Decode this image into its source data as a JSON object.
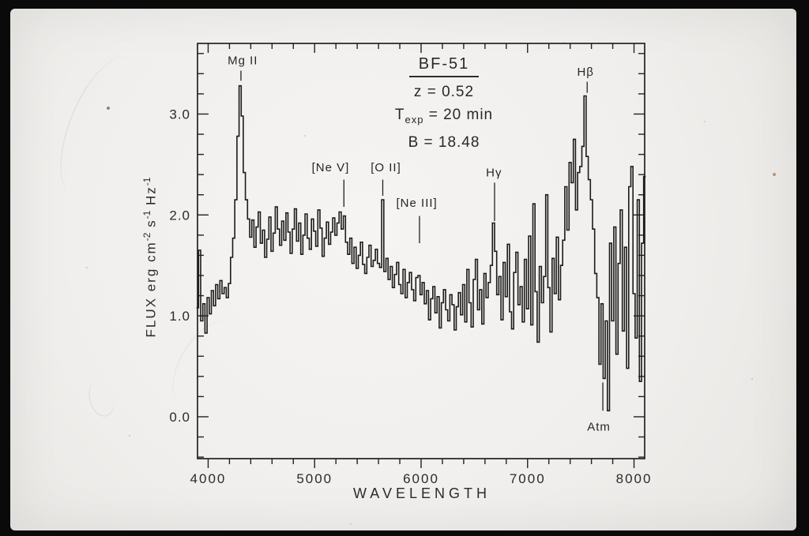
{
  "photo": {
    "border_color": "#0a0a0a",
    "slide_color": "#f1efed",
    "ink_color": "#222222"
  },
  "chart_data": {
    "type": "line",
    "subtype": "spectrum-histogram",
    "title_block": {
      "object": "BF-51",
      "redshift": "z = 0.52",
      "texp_prefix": "T",
      "texp_sub": "exp",
      "texp_value": " = 20 min",
      "b_mag": "B = 18.48"
    },
    "xlabel": "WAVELENGTH",
    "ylabel_parts": [
      "FLUX erg cm",
      "-2",
      " s",
      "-1",
      " Hz",
      "-1"
    ],
    "xlim": [
      3900,
      8100
    ],
    "ylim": [
      -0.415,
      3.7
    ],
    "x_tick_range": [
      4000,
      8000,
      200
    ],
    "y_tick_range": [
      -0.4,
      3.6,
      0.2
    ],
    "x_ticks_major": [
      4000,
      5000,
      6000,
      7000,
      8000
    ],
    "x_tick_labels": [
      "4000",
      "5000",
      "6000",
      "7000",
      "8000"
    ],
    "y_ticks_major": [
      0,
      1,
      2,
      3
    ],
    "y_tick_labels": [
      "0.0",
      "1.0",
      "2.0",
      "3.0"
    ],
    "grid": false,
    "annotations": [
      {
        "text": "Mg II",
        "label_w": 4325,
        "label_f": 3.53,
        "tick_w": 4308,
        "tick_f1": 3.43,
        "tick_f2": 3.33
      },
      {
        "text": "[Ne V]",
        "label_w": 5150,
        "label_f": 2.47,
        "tick_w": 5275,
        "tick_f1": 2.35,
        "tick_f2": 2.08
      },
      {
        "text": "[O II]",
        "label_w": 5670,
        "label_f": 2.47,
        "tick_w": 5640,
        "tick_f1": 2.35,
        "tick_f2": 2.19
      },
      {
        "text": "[Ne III]",
        "label_w": 5960,
        "label_f": 2.12,
        "tick_w": 5985,
        "tick_f1": 1.99,
        "tick_f2": 1.72
      },
      {
        "text": "Hγ",
        "label_w": 6685,
        "label_f": 2.42,
        "tick_w": 6690,
        "tick_f1": 2.32,
        "tick_f2": 1.94
      },
      {
        "text": "Hβ",
        "label_w": 7545,
        "label_f": 3.42,
        "tick_w": 7560,
        "tick_f1": 3.32,
        "tick_f2": 3.21
      },
      {
        "text": "Atm",
        "label_w": 7670,
        "label_f": -0.1,
        "tick_w": 7707,
        "tick_f1": 0.34,
        "tick_f2": 0.06
      }
    ],
    "series": {
      "name": "spectrum",
      "w_start": 3900,
      "w_step": 20,
      "flux": [
        1.08,
        1.65,
        0.95,
        1.12,
        0.83,
        1.18,
        1.02,
        1.25,
        1.1,
        1.31,
        1.17,
        1.35,
        1.22,
        1.28,
        1.18,
        1.32,
        1.58,
        1.77,
        2.15,
        2.78,
        3.28,
        2.98,
        2.42,
        2.15,
        1.96,
        1.78,
        1.95,
        1.68,
        1.88,
        2.03,
        1.72,
        1.85,
        1.58,
        1.76,
        1.98,
        1.64,
        1.82,
        2.08,
        1.86,
        1.7,
        1.94,
        1.75,
        2.02,
        1.83,
        1.62,
        1.86,
        2.06,
        1.74,
        1.92,
        1.61,
        1.8,
        2.01,
        1.77,
        1.66,
        1.96,
        1.84,
        1.69,
        2.05,
        1.87,
        1.59,
        1.77,
        1.93,
        1.71,
        1.83,
        1.97,
        1.8,
        1.92,
        2.03,
        1.86,
        1.99,
        1.73,
        1.61,
        1.77,
        1.52,
        1.68,
        1.47,
        1.6,
        1.73,
        1.51,
        1.42,
        1.58,
        1.7,
        1.49,
        1.55,
        1.66,
        1.52,
        1.48,
        2.15,
        1.44,
        1.57,
        1.36,
        1.49,
        1.28,
        1.41,
        1.53,
        1.31,
        1.22,
        1.46,
        1.18,
        1.33,
        1.43,
        1.26,
        1.15,
        1.38,
        1.4,
        1.21,
        1.33,
        1.12,
        1.25,
        0.96,
        1.17,
        1.29,
        1.03,
        1.19,
        0.88,
        1.13,
        1.26,
        1.06,
        0.95,
        1.21,
        1.11,
        0.86,
        1.09,
        1.23,
        1.01,
        1.31,
        0.94,
        1.46,
        1.13,
        0.89,
        1.36,
        1.56,
        1.06,
        1.26,
        0.92,
        1.42,
        1.18,
        1.33,
        1.5,
        1.92,
        1.64,
        1.21,
        1.39,
        0.96,
        1.53,
        1.19,
        1.71,
        1.04,
        0.87,
        1.43,
        1.63,
        1.11,
        1.29,
        0.94,
        1.56,
        1.07,
        1.79,
        0.91,
        2.11,
        1.24,
        0.74,
        1.49,
        1.13,
        1.39,
        2.2,
        1.28,
        0.84,
        1.57,
        1.22,
        1.78,
        1.16,
        1.5,
        1.75,
        2.28,
        1.85,
        2.52,
        2.32,
        2.75,
        2.05,
        2.42,
        2.48,
        2.68,
        3.18,
        2.58,
        2.35,
        2.15,
        1.86,
        1.42,
        1.18,
        0.52,
        1.12,
        0.38,
        0.95,
        0.06,
        1.72,
        0.95,
        1.88,
        0.62,
        1.52,
        2.05,
        0.85,
        1.68,
        0.48,
        2.28,
        2.48,
        1.22,
        0.78,
        2.15,
        0.35,
        1.72,
        2.38
      ]
    }
  }
}
